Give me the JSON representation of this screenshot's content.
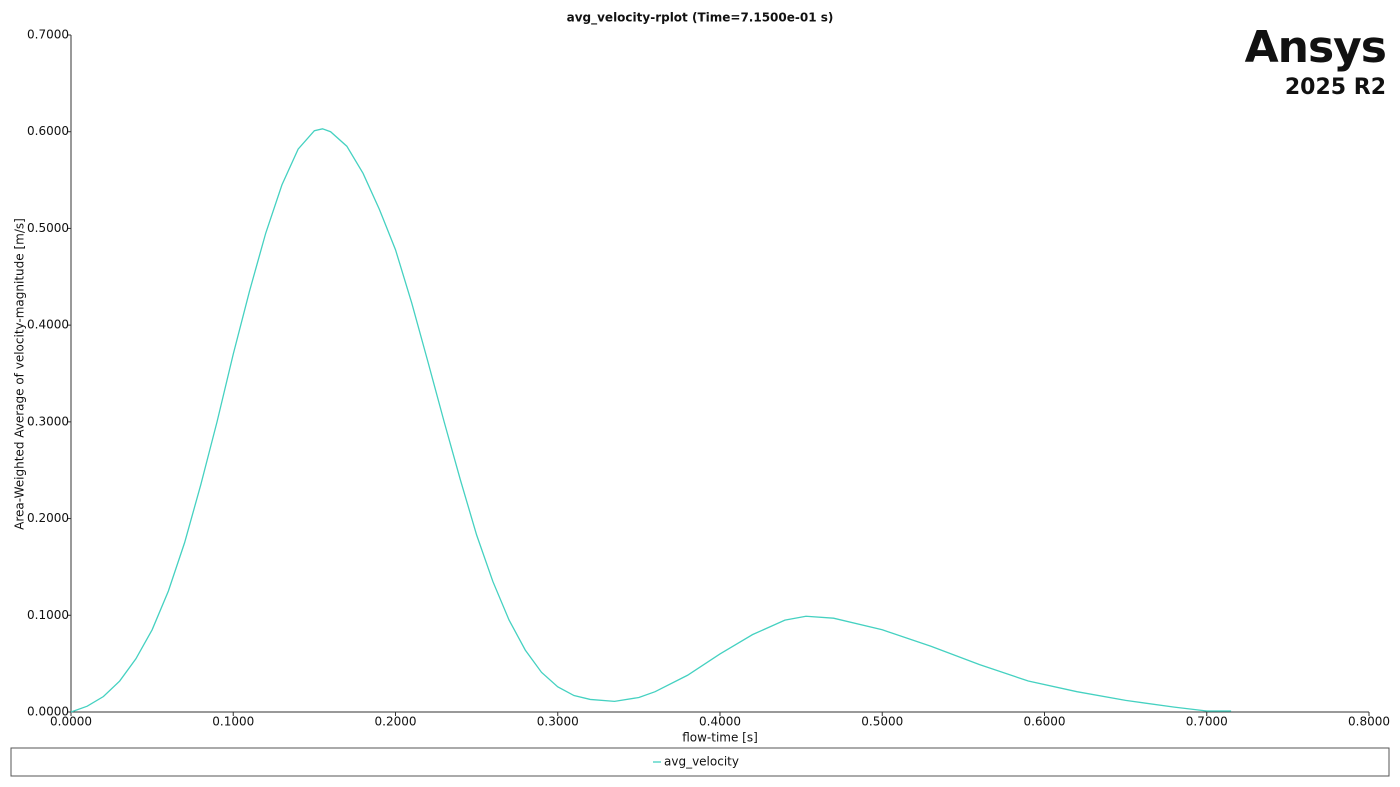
{
  "chart_data": {
    "type": "line",
    "title": "avg_velocity-rplot (Time=7.1500e-01 s)",
    "x_label": "flow-time [s]",
    "y_label": "Area-Weighted Average of velocity-magnitude [m/s]",
    "x": [
      0,
      0.01,
      0.02,
      0.03,
      0.04,
      0.05,
      0.06,
      0.07,
      0.08,
      0.09,
      0.1,
      0.11,
      0.12,
      0.13,
      0.14,
      0.15,
      0.155,
      0.16,
      0.17,
      0.18,
      0.19,
      0.2,
      0.21,
      0.22,
      0.23,
      0.24,
      0.25,
      0.26,
      0.27,
      0.28,
      0.29,
      0.3,
      0.31,
      0.32,
      0.335,
      0.35,
      0.36,
      0.38,
      0.4,
      0.42,
      0.44,
      0.453,
      0.47,
      0.5,
      0.53,
      0.56,
      0.59,
      0.62,
      0.65,
      0.68,
      0.7,
      0.715
    ],
    "series": [
      {
        "name": "avg_velocity",
        "color": "#45d1c1",
        "values": [
          0,
          0.006,
          0.016,
          0.032,
          0.055,
          0.085,
          0.125,
          0.175,
          0.235,
          0.3,
          0.37,
          0.435,
          0.495,
          0.545,
          0.582,
          0.601,
          0.603,
          0.6,
          0.585,
          0.557,
          0.52,
          0.478,
          0.423,
          0.362,
          0.3,
          0.24,
          0.183,
          0.135,
          0.095,
          0.064,
          0.041,
          0.026,
          0.017,
          0.013,
          0.011,
          0.015,
          0.021,
          0.038,
          0.06,
          0.08,
          0.095,
          0.099,
          0.097,
          0.085,
          0.068,
          0.049,
          0.032,
          0.021,
          0.012,
          0.005,
          0.001,
          0.001
        ]
      }
    ],
    "xlim": [
      0,
      0.8
    ],
    "ylim": [
      0,
      0.7
    ],
    "xticks": [
      {
        "value": 0,
        "label": "0.0000"
      },
      {
        "value": 0.1,
        "label": "0.1000"
      },
      {
        "value": 0.2,
        "label": "0.2000"
      },
      {
        "value": 0.3,
        "label": "0.3000"
      },
      {
        "value": 0.4,
        "label": "0.4000"
      },
      {
        "value": 0.5,
        "label": "0.5000"
      },
      {
        "value": 0.6,
        "label": "0.6000"
      },
      {
        "value": 0.7,
        "label": "0.7000"
      },
      {
        "value": 0.8,
        "label": "0.8000"
      }
    ],
    "yticks": [
      {
        "value": 0,
        "label": "0.0000"
      },
      {
        "value": 0.1,
        "label": "0.1000"
      },
      {
        "value": 0.2,
        "label": "0.2000"
      },
      {
        "value": 0.3,
        "label": "0.3000"
      },
      {
        "value": 0.4,
        "label": "0.4000"
      },
      {
        "value": 0.5,
        "label": "0.5000"
      },
      {
        "value": 0.6,
        "label": "0.6000"
      },
      {
        "value": 0.7,
        "label": "0.7000"
      }
    ],
    "grid": false,
    "legend": "bottom"
  },
  "logo": {
    "name": "Ansys",
    "version": "2025 R2"
  }
}
